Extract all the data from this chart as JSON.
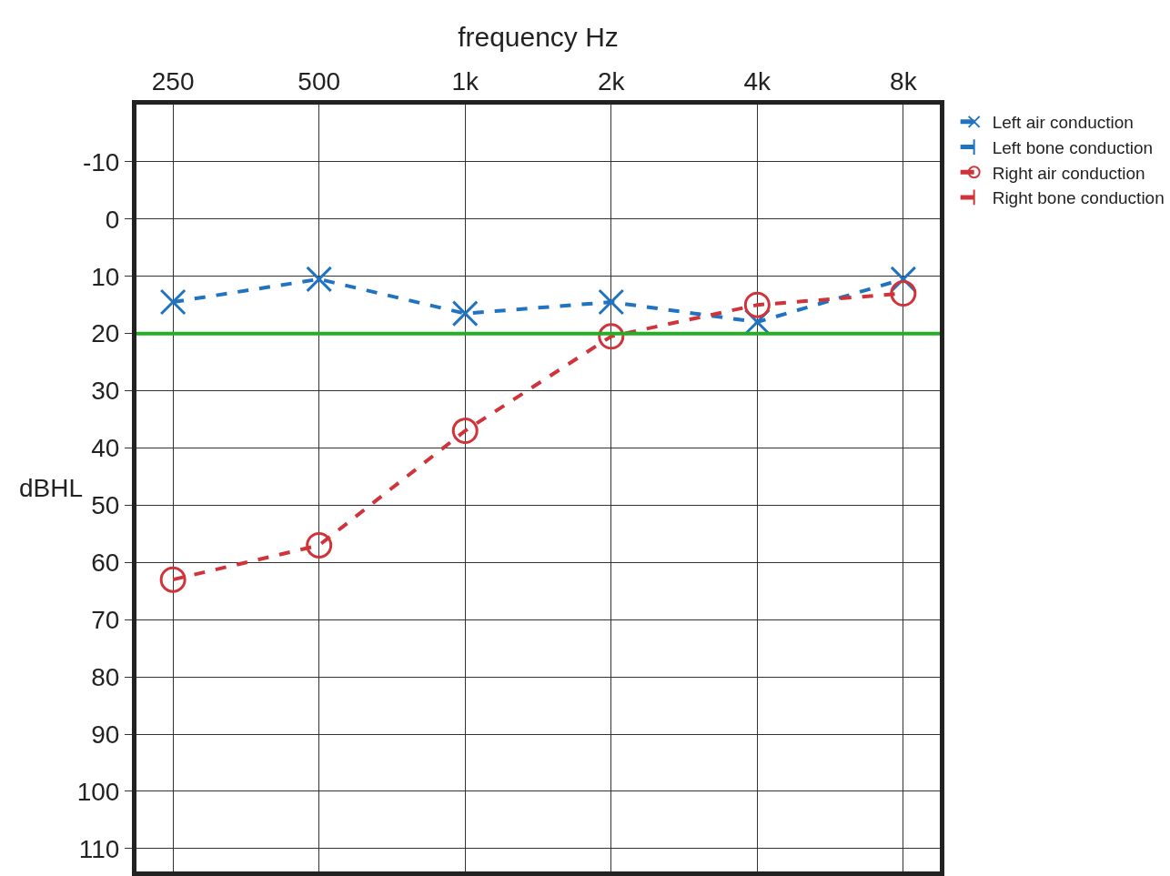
{
  "chart_data": {
    "type": "line",
    "xlabel": "frequency Hz",
    "ylabel": "dBHL",
    "categories": [
      "250",
      "500",
      "1k",
      "2k",
      "4k",
      "8k"
    ],
    "ylim": [
      114,
      -20
    ],
    "yticks": [
      -10,
      0,
      10,
      20,
      30,
      40,
      50,
      60,
      70,
      80,
      90,
      100,
      110
    ],
    "grid": true,
    "legend": "top right",
    "line_style": "dashed",
    "series": [
      {
        "name": "Left air conduction",
        "color": "#1f73c1",
        "marker": "cross",
        "values": [
          14.5,
          10.5,
          16.5,
          14.5,
          18,
          10.5
        ]
      },
      {
        "name": "Left bone conduction",
        "color": "#1f73c1",
        "marker": "bracket_right",
        "values": [
          null,
          null,
          null,
          null,
          null,
          null
        ]
      },
      {
        "name": "Right air conduction",
        "color": "#d0343a",
        "marker": "circle",
        "values": [
          63,
          57,
          37,
          20.5,
          15,
          13
        ]
      },
      {
        "name": "Right bone conduction",
        "color": "#d0343a",
        "marker": "bracket_left",
        "values": [
          null,
          null,
          null,
          null,
          null,
          null
        ]
      }
    ],
    "ref_lines": [
      {
        "axis": "y",
        "value": 20,
        "color": "#22b022",
        "line_style": "solid"
      }
    ]
  }
}
